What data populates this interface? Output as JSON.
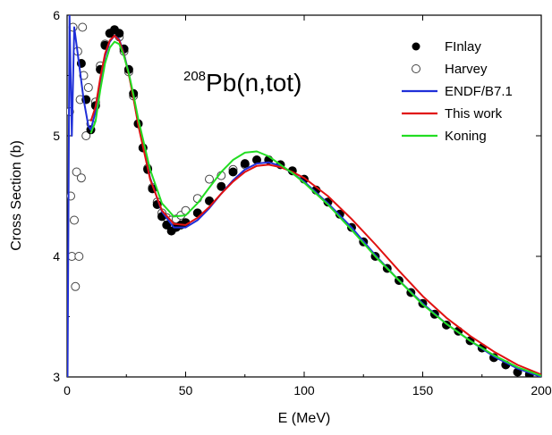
{
  "chart_data": {
    "type": "line",
    "xlabel": "E (MeV)",
    "ylabel": "Cross Section (b)",
    "xlim": [
      0,
      200
    ],
    "ylim": [
      3,
      6
    ],
    "x_ticks": [
      0,
      50,
      100,
      150,
      200
    ],
    "y_ticks": [
      3,
      4,
      5,
      6
    ],
    "x_tick_labels": [
      "0",
      "50",
      "100",
      "150",
      "200"
    ],
    "y_tick_labels": [
      "3",
      "4",
      "5",
      "6"
    ],
    "grid": false,
    "legend_position": "top-right",
    "annotation": {
      "superscript": "208",
      "text": "Pb(n,tot)"
    },
    "series": [
      {
        "name": "FInlay",
        "kind": "marker",
        "marker": "filled-circle",
        "color": "#000000",
        "x": [
          6,
          8,
          10,
          12,
          14,
          16,
          18,
          20,
          22,
          24,
          26,
          28,
          30,
          32,
          34,
          36,
          38,
          40,
          42,
          44,
          46,
          48,
          50,
          55,
          60,
          65,
          70,
          75,
          80,
          85,
          90,
          95,
          100,
          105,
          110,
          115,
          120,
          125,
          130,
          135,
          140,
          145,
          150,
          155,
          160,
          165,
          170,
          175,
          180,
          185,
          190,
          195
        ],
        "y": [
          5.6,
          5.3,
          5.05,
          5.25,
          5.55,
          5.75,
          5.85,
          5.88,
          5.85,
          5.72,
          5.55,
          5.35,
          5.1,
          4.9,
          4.72,
          4.56,
          4.43,
          4.33,
          4.26,
          4.21,
          4.24,
          4.26,
          4.28,
          4.36,
          4.46,
          4.58,
          4.7,
          4.77,
          4.8,
          4.8,
          4.76,
          4.71,
          4.64,
          4.55,
          4.45,
          4.35,
          4.24,
          4.12,
          4.0,
          3.9,
          3.8,
          3.7,
          3.61,
          3.52,
          3.43,
          3.38,
          3.3,
          3.24,
          3.16,
          3.1,
          3.04,
          3.02
        ]
      },
      {
        "name": "Harvey",
        "kind": "marker",
        "marker": "open-circle",
        "color": "#444444",
        "x": [
          1,
          1.5,
          2,
          2.5,
          3,
          3.5,
          4,
          4.5,
          5,
          5.5,
          6,
          6.5,
          7,
          8,
          9,
          10,
          12,
          14,
          16,
          18,
          20,
          22,
          24,
          26,
          28,
          30,
          32,
          34,
          36,
          38,
          40,
          42,
          44,
          46,
          48,
          50,
          55,
          60,
          65,
          70,
          75
        ],
        "y": [
          5.2,
          4.5,
          4.0,
          5.9,
          4.3,
          3.75,
          4.7,
          5.7,
          4.0,
          5.3,
          4.65,
          5.9,
          5.5,
          5.0,
          5.4,
          5.1,
          5.28,
          5.58,
          5.76,
          5.85,
          5.86,
          5.82,
          5.7,
          5.53,
          5.33,
          5.1,
          4.9,
          4.73,
          4.57,
          4.45,
          4.36,
          4.32,
          4.3,
          4.31,
          4.34,
          4.38,
          4.48,
          4.64,
          4.67,
          4.72,
          4.76
        ]
      },
      {
        "name": "ENDF/B7.1",
        "kind": "line",
        "color": "#1f2fd8",
        "x": [
          0.2,
          1,
          2,
          3,
          5,
          7,
          9,
          10,
          12,
          14,
          16,
          18,
          20,
          22,
          24,
          26,
          28,
          30,
          35,
          40,
          45,
          50,
          55,
          60,
          65,
          70,
          75,
          80,
          85,
          90,
          95,
          100,
          110,
          120,
          130,
          140,
          150,
          160,
          170,
          180,
          190,
          200
        ],
        "y": [
          3.0,
          6.0,
          5.0,
          5.9,
          5.6,
          5.3,
          5.08,
          5.05,
          5.2,
          5.45,
          5.66,
          5.78,
          5.83,
          5.8,
          5.68,
          5.52,
          5.32,
          5.1,
          4.65,
          4.37,
          4.24,
          4.24,
          4.3,
          4.4,
          4.52,
          4.63,
          4.72,
          4.77,
          4.78,
          4.75,
          4.69,
          4.62,
          4.44,
          4.24,
          4.01,
          3.8,
          3.61,
          3.44,
          3.3,
          3.17,
          3.07,
          3.0
        ]
      },
      {
        "name": "This work",
        "kind": "line",
        "color": "#e01010",
        "x": [
          10,
          12,
          14,
          16,
          18,
          20,
          22,
          24,
          26,
          28,
          30,
          35,
          40,
          45,
          50,
          55,
          60,
          65,
          70,
          75,
          80,
          85,
          90,
          95,
          100,
          110,
          120,
          130,
          140,
          150,
          160,
          170,
          180,
          190,
          200
        ],
        "y": [
          5.12,
          5.24,
          5.48,
          5.68,
          5.79,
          5.83,
          5.79,
          5.67,
          5.51,
          5.31,
          5.09,
          4.64,
          4.38,
          4.27,
          4.26,
          4.32,
          4.41,
          4.52,
          4.62,
          4.7,
          4.75,
          4.76,
          4.74,
          4.7,
          4.65,
          4.5,
          4.31,
          4.1,
          3.88,
          3.67,
          3.49,
          3.34,
          3.21,
          3.1,
          3.02
        ]
      },
      {
        "name": "Koning",
        "kind": "line",
        "color": "#22dd22",
        "x": [
          10,
          12,
          14,
          16,
          18,
          20,
          22,
          24,
          26,
          28,
          30,
          35,
          40,
          45,
          50,
          55,
          60,
          65,
          70,
          75,
          80,
          85,
          90,
          95,
          100,
          110,
          120,
          130,
          140,
          150,
          160,
          170,
          180,
          190,
          200
        ],
        "y": [
          5.02,
          5.12,
          5.38,
          5.6,
          5.73,
          5.78,
          5.76,
          5.66,
          5.52,
          5.34,
          5.14,
          4.72,
          4.44,
          4.33,
          4.34,
          4.44,
          4.57,
          4.7,
          4.8,
          4.86,
          4.87,
          4.83,
          4.76,
          4.69,
          4.61,
          4.43,
          4.22,
          4.0,
          3.8,
          3.6,
          3.44,
          3.3,
          3.18,
          3.08,
          3.01
        ]
      }
    ]
  }
}
